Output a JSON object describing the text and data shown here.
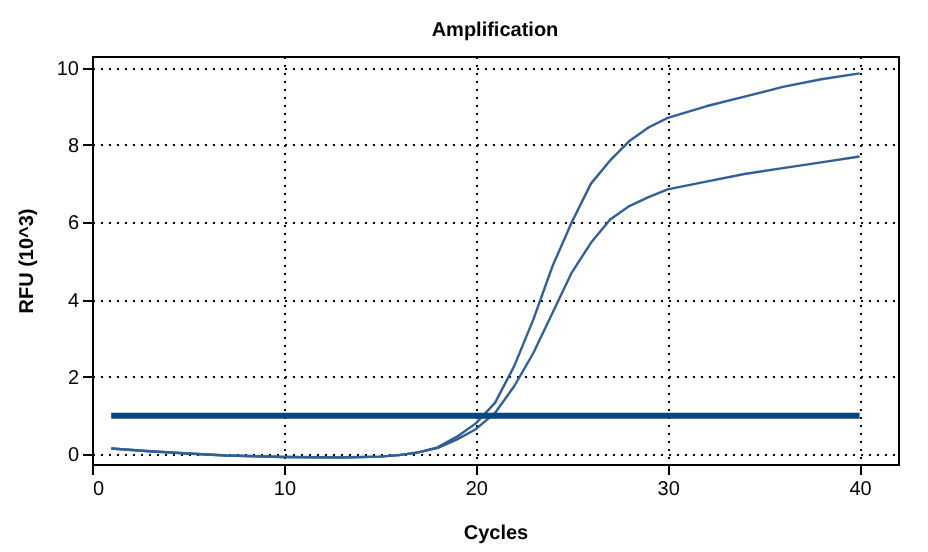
{
  "chart_data": {
    "type": "line",
    "title": "Amplification",
    "xlabel": "Cycles",
    "ylabel": "RFU (10^3)",
    "x": [
      1,
      3,
      5,
      7,
      10,
      13,
      15,
      16,
      17,
      18,
      19,
      20,
      21,
      22,
      23,
      24,
      25,
      26,
      27,
      28,
      29,
      30,
      32,
      34,
      36,
      38,
      40
    ],
    "series": [
      {
        "color": "#2f5f95",
        "values": [
          0.15,
          0.08,
          0.02,
          -0.03,
          -0.07,
          -0.08,
          -0.06,
          -0.02,
          0.05,
          0.18,
          0.45,
          0.8,
          1.33,
          2.28,
          3.49,
          4.87,
          6.0,
          7.0,
          7.6,
          8.1,
          8.45,
          8.7,
          9.0,
          9.25,
          9.5,
          9.7,
          9.85
        ]
      },
      {
        "color": "#2f5f95",
        "values": [
          0.15,
          0.08,
          0.02,
          -0.03,
          -0.07,
          -0.08,
          -0.06,
          -0.02,
          0.05,
          0.16,
          0.38,
          0.65,
          1.07,
          1.76,
          2.62,
          3.66,
          4.7,
          5.47,
          6.07,
          6.42,
          6.65,
          6.85,
          7.05,
          7.25,
          7.4,
          7.55,
          7.7
        ]
      }
    ],
    "ref_lines": [
      {
        "axis": "y",
        "value": 1,
        "color": "#0b457f"
      }
    ],
    "xlim": [
      0,
      42
    ],
    "ylim": [
      -0.25,
      10.3
    ],
    "xticks": [
      0,
      10,
      20,
      30,
      40
    ],
    "yticks": [
      0,
      2,
      4,
      6,
      8,
      10
    ],
    "grid": true,
    "marker": "none",
    "line_style": "solid"
  }
}
